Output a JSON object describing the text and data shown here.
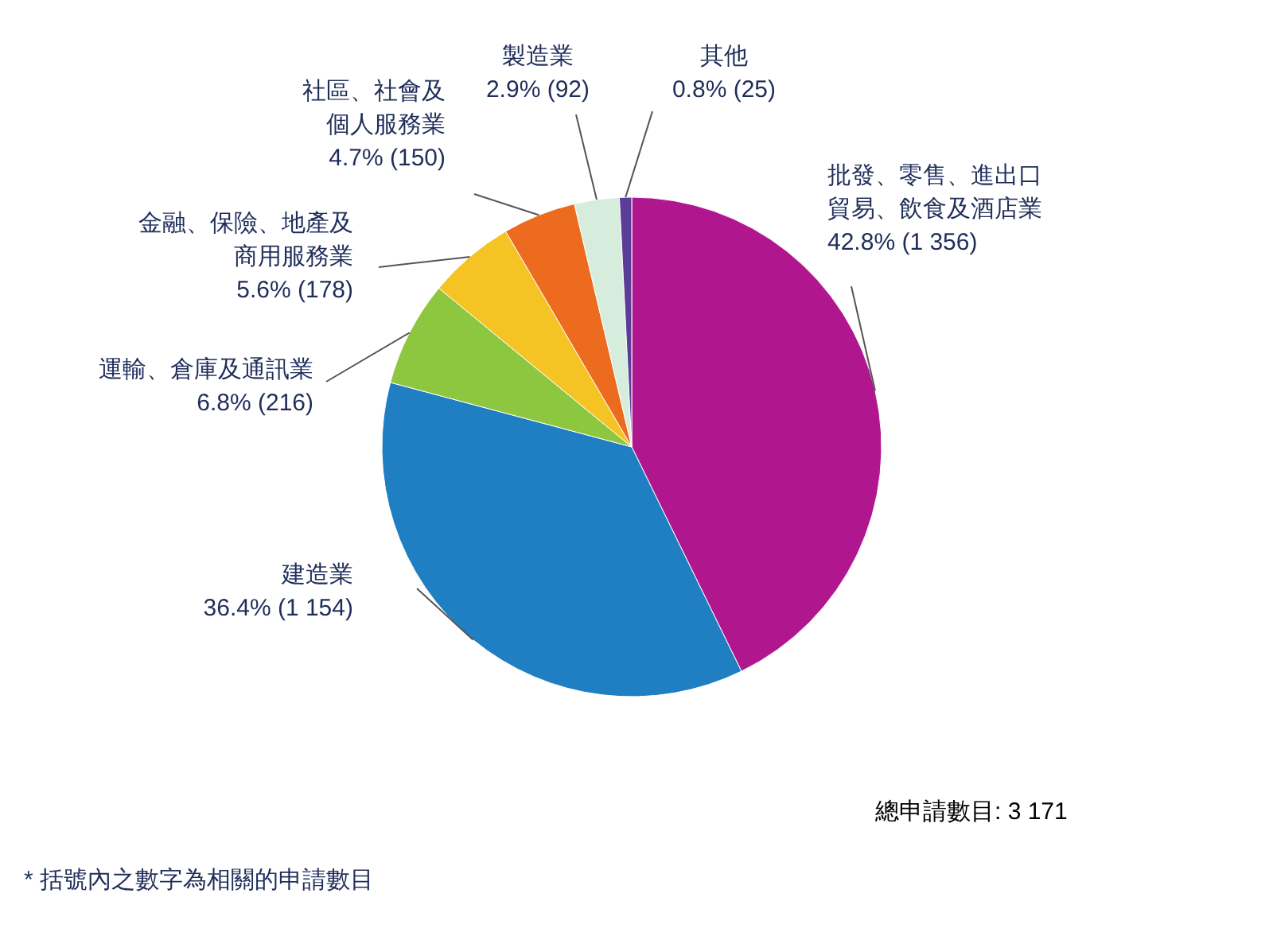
{
  "chart_data": {
    "type": "pie",
    "categories": [
      "批發、零售、進出口貿易、飲食及酒店業",
      "建造業",
      "運輸、倉庫及通訊業",
      "金融、保險、地產及商用服務業",
      "社區、社會及個人服務業",
      "製造業",
      "其他"
    ],
    "values": [
      1356,
      1154,
      216,
      178,
      150,
      92,
      25
    ],
    "value_labels": [
      "42.8% (1 356)",
      "36.4% (1 154)",
      "6.8% (216)",
      "5.6% (178)",
      "4.7% (150)",
      "2.9% (92)",
      "0.8% (25)"
    ],
    "colors": [
      "#b0178e",
      "#1f7fc2",
      "#8dc63f",
      "#f6c324",
      "#ec6b1f",
      "#d6ecdc",
      "#5b3c96"
    ],
    "annotations": [
      "總申請數目: 3 171",
      "* 括號內之數字為相關的申請數目"
    ]
  }
}
